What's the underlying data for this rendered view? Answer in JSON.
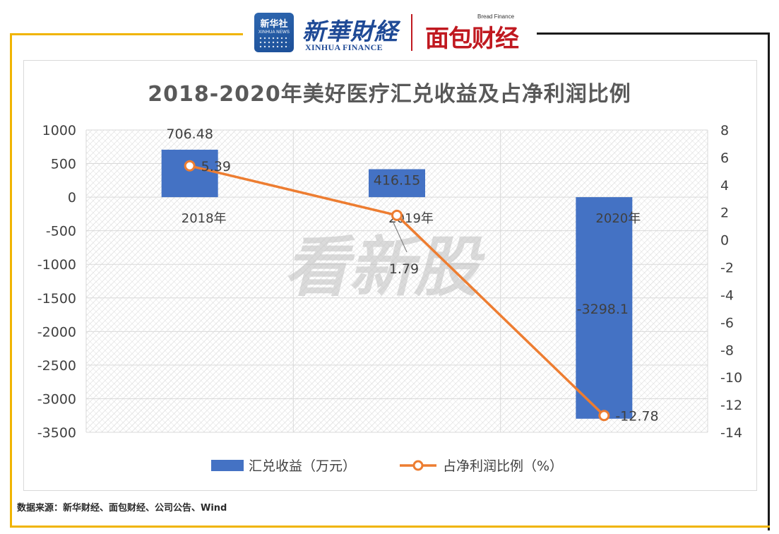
{
  "header": {
    "xinhua_badge_cn": "新华社",
    "xinhua_badge_en": "XINHUA NEWS",
    "xinhua_finance_cn": "新華財経",
    "xinhua_finance_en": "XINHUA FINANCE",
    "bread_finance_en": "Bread Finance",
    "bread_finance_cn": "面包财经"
  },
  "watermark": "看新股",
  "source_note": "数据来源：新华财经、面包财经、公司公告、Wind",
  "colors": {
    "bar": "#4472c4",
    "line": "#ed7d31",
    "frame_accent": "#f0b400",
    "title": "#595959"
  },
  "chart_data": {
    "type": "bar",
    "title": "2018-2020年美好医疗汇兑收益及占净利润比例",
    "categories": [
      "2018年",
      "2019年",
      "2020年"
    ],
    "series": [
      {
        "name": "汇兑收益（万元）",
        "type": "bar",
        "axis": "left",
        "values": [
          706.48,
          416.15,
          -3298.1
        ],
        "labels": [
          "706.48",
          "416.15",
          "-3298.1"
        ]
      },
      {
        "name": "占净利润比例（%）",
        "type": "line",
        "axis": "right",
        "values": [
          5.39,
          1.79,
          -12.78
        ],
        "labels": [
          "5.39",
          "1.79",
          "-12.78"
        ]
      }
    ],
    "left_axis": {
      "ylim": [
        -3500,
        1000
      ],
      "ticks": [
        1000,
        500,
        0,
        -500,
        -1000,
        -1500,
        -2000,
        -2500,
        -3000,
        -3500
      ]
    },
    "right_axis": {
      "ylim": [
        -14,
        8
      ],
      "ticks": [
        8,
        6,
        4,
        2,
        0,
        -2,
        -4,
        -6,
        -8,
        -10,
        -12,
        -14
      ]
    },
    "grid": true,
    "legend_position": "bottom"
  }
}
